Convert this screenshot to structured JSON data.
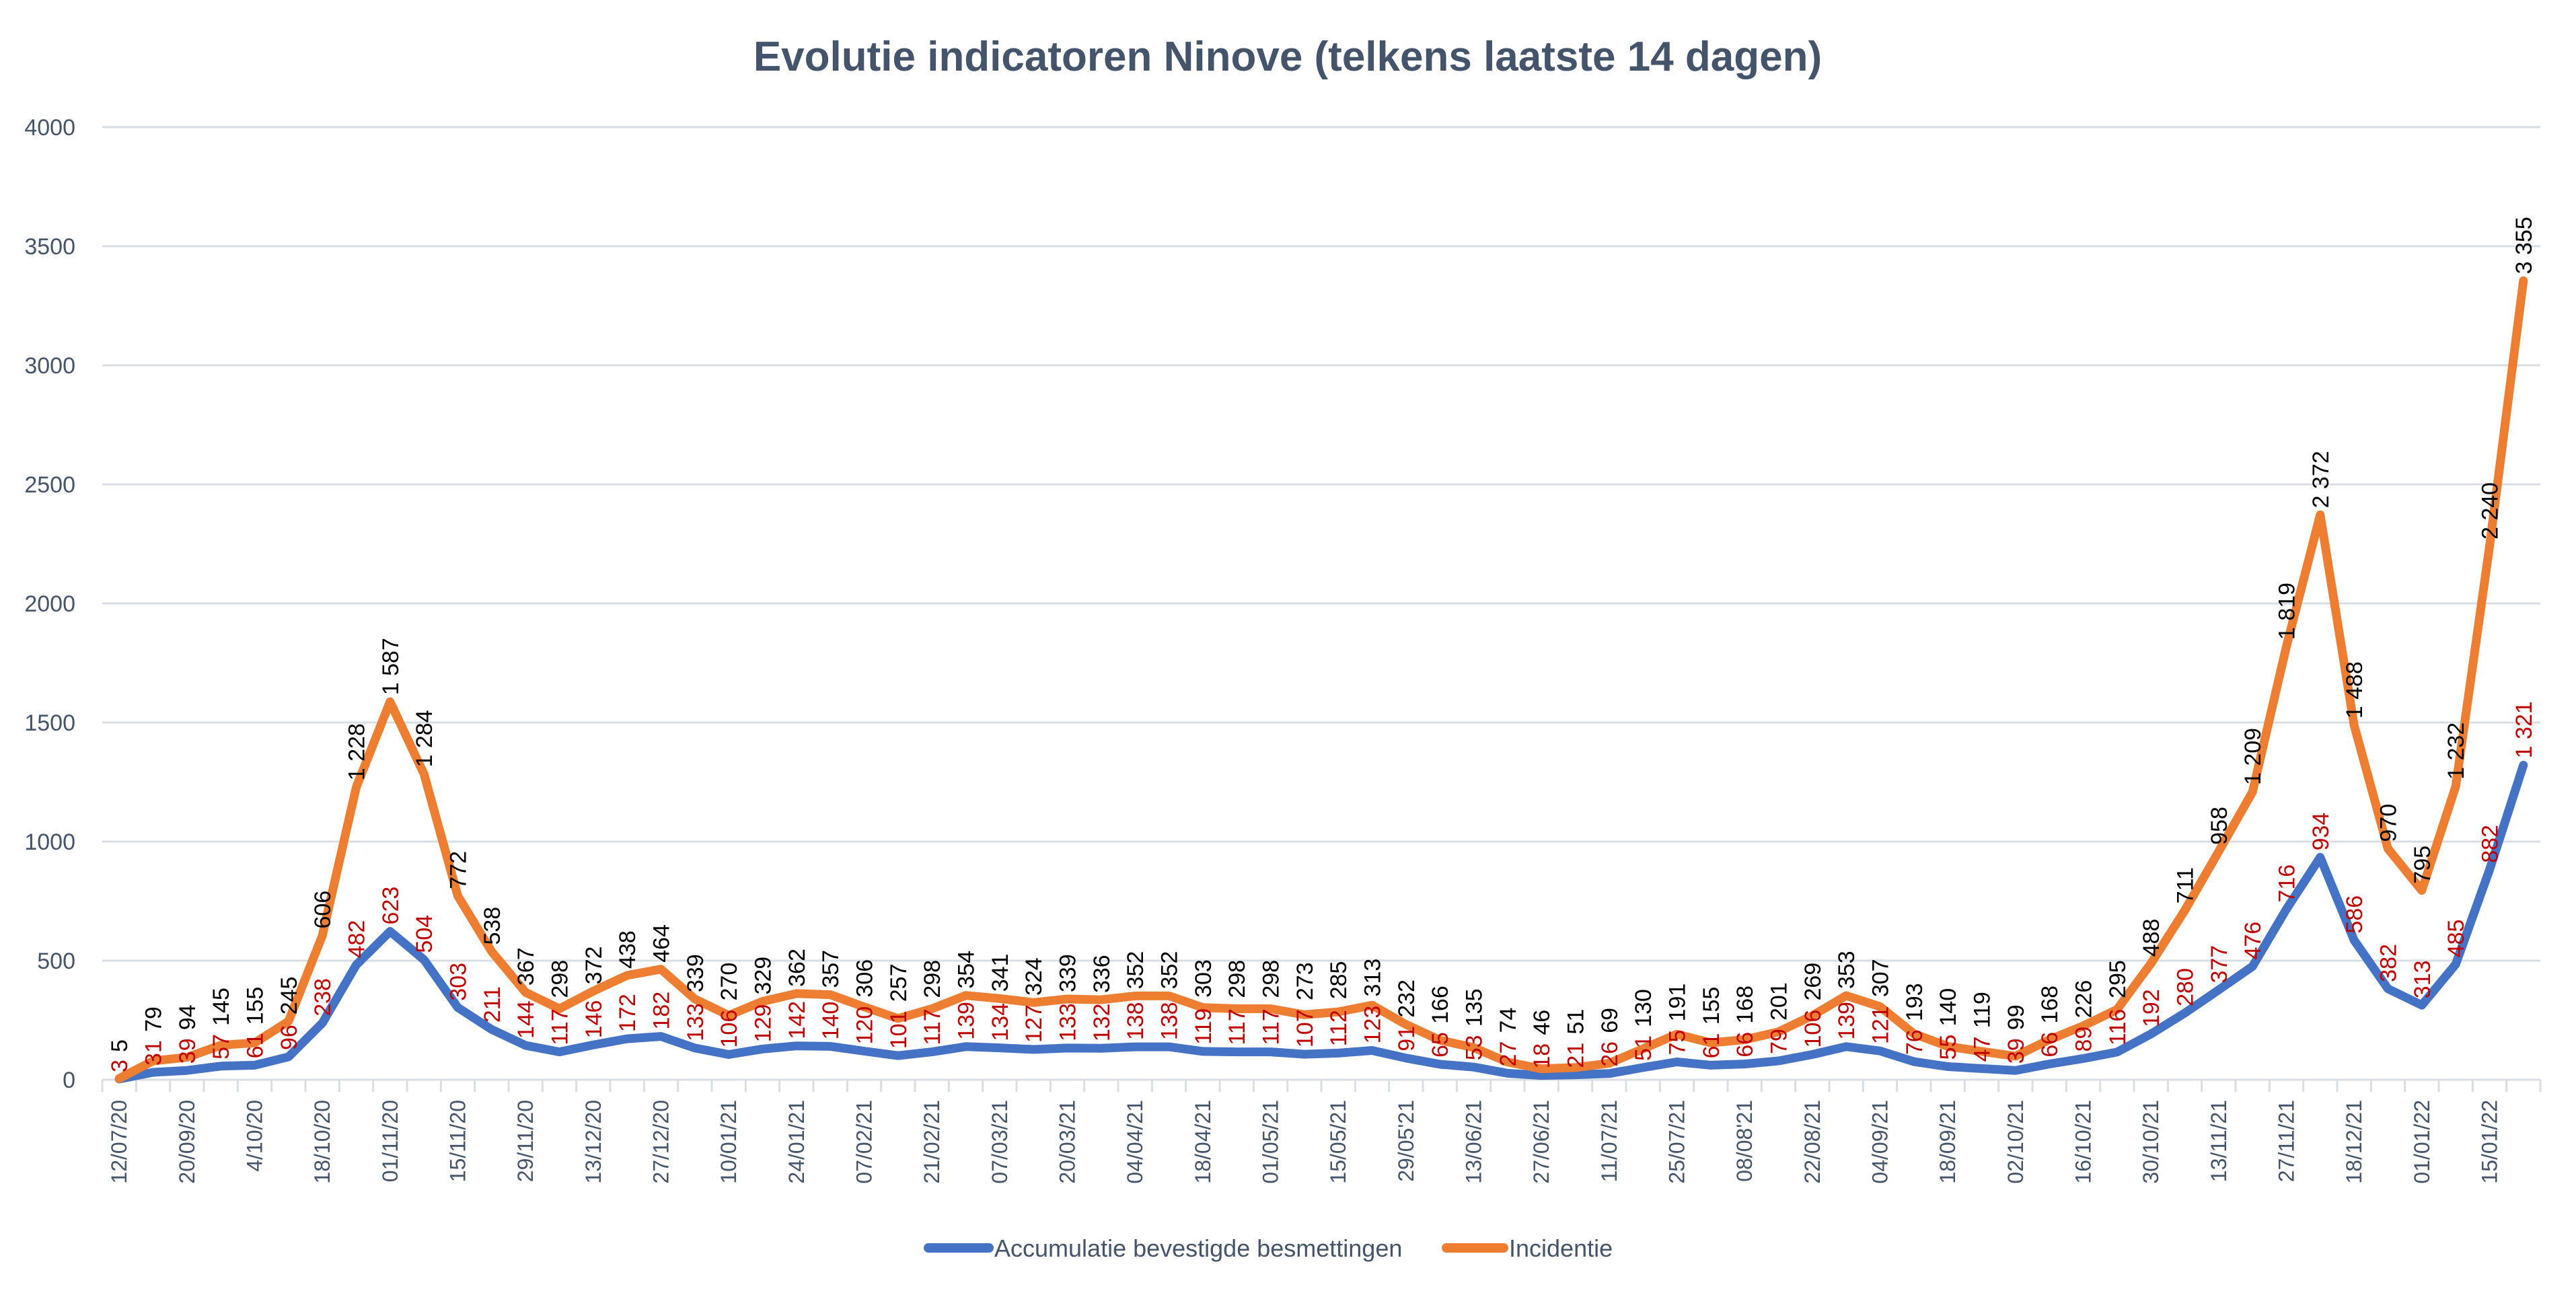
{
  "chart_data": {
    "type": "line",
    "title": "Evolutie indicatoren Ninove (telkens laatste 14 dagen)",
    "xlabel": "",
    "ylabel": "",
    "ylim": [
      0,
      4000
    ],
    "yticks": [
      0,
      500,
      1000,
      1500,
      2000,
      2500,
      3000,
      3500,
      4000
    ],
    "grid": true,
    "legend_position": "bottom",
    "x_tick_labels": [
      "12/07/20",
      "20/09/20",
      "4/10/20",
      "18/10/20",
      "01/11/20",
      "15/11/20",
      "29/11/20",
      "13/12/20",
      "27/12/20",
      "10/01/21",
      "24/01/21",
      "07/02/21",
      "21/02/21",
      "07/03/21",
      "20/03/21",
      "04/04/21",
      "18/04/21",
      "01/05/21",
      "15/05/21",
      "29/05'21",
      "13/06/21",
      "27/06/21",
      "11/07/21",
      "25/07/21",
      "08/08'21",
      "22/08/21",
      "04/09/21",
      "18/09/21",
      "02/10/21",
      "16/10/21",
      "30/10/21",
      "13/11/21",
      "27/11/21",
      "18/12/21",
      "01/01/22",
      "15/01/22"
    ],
    "series": [
      {
        "name": "Accumulatie bevestigde besmettingen",
        "color": "#4472c4",
        "label_color": "#c00000",
        "values": [
          3,
          31,
          39,
          57,
          61,
          96,
          238,
          482,
          623,
          504,
          303,
          211,
          144,
          117,
          146,
          172,
          182,
          133,
          106,
          129,
          142,
          140,
          120,
          101,
          117,
          139,
          134,
          127,
          133,
          132,
          138,
          138,
          119,
          117,
          117,
          107,
          112,
          123,
          91,
          65,
          53,
          27,
          18,
          21,
          26,
          51,
          75,
          61,
          66,
          79,
          106,
          139,
          121,
          76,
          55,
          47,
          39,
          66,
          89,
          116,
          192,
          280,
          377,
          476,
          716,
          934,
          586,
          382,
          313,
          485,
          882,
          1321
        ]
      },
      {
        "name": "Incidentie",
        "color": "#ed7d31",
        "label_color": "#000000",
        "values": [
          5,
          79,
          94,
          145,
          155,
          245,
          606,
          1228,
          1587,
          1284,
          772,
          538,
          367,
          298,
          372,
          438,
          464,
          339,
          270,
          329,
          362,
          357,
          306,
          257,
          298,
          354,
          341,
          324,
          339,
          336,
          352,
          352,
          303,
          298,
          298,
          273,
          285,
          313,
          232,
          166,
          135,
          74,
          46,
          51,
          69,
          130,
          191,
          155,
          168,
          201,
          269,
          353,
          307,
          193,
          140,
          119,
          99,
          168,
          226,
          295,
          488,
          711,
          958,
          1209,
          1819,
          2372,
          1488,
          970,
          795,
          1232,
          2240,
          3355
        ]
      }
    ]
  }
}
